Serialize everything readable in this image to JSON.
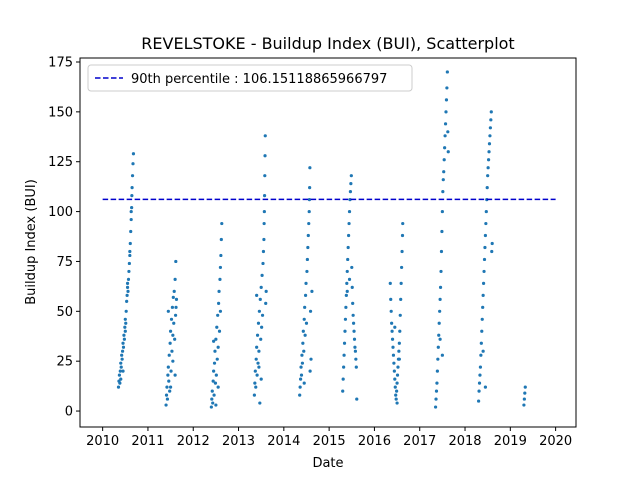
{
  "chart_data": {
    "type": "scatter",
    "title": "REVELSTOKE - Buildup Index (BUI), Scatterplot",
    "xlabel": "Date",
    "ylabel": "Buildup Index (BUI)",
    "x_ticks": [
      "2010",
      "2011",
      "2012",
      "2013",
      "2014",
      "2015",
      "2016",
      "2017",
      "2018",
      "2019",
      "2020"
    ],
    "y_ticks": [
      "0",
      "25",
      "50",
      "75",
      "100",
      "125",
      "150",
      "175"
    ],
    "xlim": [
      2009.5,
      2020.45
    ],
    "ylim": [
      -8,
      177
    ],
    "grid": false,
    "legend_position": "top-left",
    "reference_line": {
      "label": "90th percentile : 106.15118865966797",
      "value": 106.15118865966797,
      "x_range": [
        2010.0,
        2020.0
      ],
      "color": "#0000cc",
      "style": "dashed"
    },
    "point_color": "#1f77b4",
    "series": [
      {
        "points": [
          [
            2010.35,
            12
          ],
          [
            2010.36,
            15
          ],
          [
            2010.37,
            18
          ],
          [
            2010.38,
            14
          ],
          [
            2010.39,
            20
          ],
          [
            2010.4,
            24
          ],
          [
            2010.41,
            22
          ],
          [
            2010.42,
            28
          ],
          [
            2010.43,
            26
          ],
          [
            2010.44,
            30
          ],
          [
            2010.45,
            34
          ],
          [
            2010.46,
            32
          ],
          [
            2010.47,
            38
          ],
          [
            2010.48,
            36
          ],
          [
            2010.49,
            42
          ],
          [
            2010.5,
            46
          ],
          [
            2010.51,
            44
          ],
          [
            2010.52,
            50
          ],
          [
            2010.53,
            55
          ],
          [
            2010.54,
            58
          ],
          [
            2010.55,
            62
          ],
          [
            2010.56,
            60
          ],
          [
            2010.57,
            66
          ],
          [
            2010.58,
            70
          ],
          [
            2010.59,
            74
          ],
          [
            2010.6,
            78
          ],
          [
            2010.61,
            84
          ],
          [
            2010.62,
            90
          ],
          [
            2010.63,
            96
          ],
          [
            2010.64,
            102
          ],
          [
            2010.645,
            108
          ],
          [
            2010.65,
            112
          ],
          [
            2010.66,
            118
          ],
          [
            2010.67,
            124
          ],
          [
            2010.68,
            129
          ],
          [
            2010.4,
            16
          ],
          [
            2010.45,
            20
          ],
          [
            2010.5,
            40
          ],
          [
            2010.55,
            64
          ],
          [
            2010.6,
            80
          ],
          [
            2010.63,
            100
          ]
        ]
      },
      {
        "points": [
          [
            2011.4,
            3
          ],
          [
            2011.41,
            8
          ],
          [
            2011.42,
            12
          ],
          [
            2011.43,
            6
          ],
          [
            2011.44,
            18
          ],
          [
            2011.45,
            22
          ],
          [
            2011.46,
            15
          ],
          [
            2011.47,
            28
          ],
          [
            2011.48,
            10
          ],
          [
            2011.49,
            34
          ],
          [
            2011.5,
            40
          ],
          [
            2011.51,
            20
          ],
          [
            2011.52,
            46
          ],
          [
            2011.53,
            30
          ],
          [
            2011.54,
            52
          ],
          [
            2011.55,
            25
          ],
          [
            2011.56,
            57
          ],
          [
            2011.57,
            44
          ],
          [
            2011.58,
            60
          ],
          [
            2011.59,
            36
          ],
          [
            2011.6,
            66
          ],
          [
            2011.61,
            48
          ],
          [
            2011.615,
            75
          ],
          [
            2011.62,
            52
          ],
          [
            2011.63,
            56
          ],
          [
            2011.45,
            50
          ],
          [
            2011.5,
            12
          ],
          [
            2011.55,
            38
          ],
          [
            2011.6,
            18
          ]
        ]
      },
      {
        "points": [
          [
            2012.4,
            2
          ],
          [
            2012.41,
            6
          ],
          [
            2012.42,
            10
          ],
          [
            2012.43,
            4
          ],
          [
            2012.44,
            15
          ],
          [
            2012.45,
            20
          ],
          [
            2012.46,
            8
          ],
          [
            2012.47,
            24
          ],
          [
            2012.48,
            30
          ],
          [
            2012.49,
            14
          ],
          [
            2012.5,
            36
          ],
          [
            2012.51,
            18
          ],
          [
            2012.52,
            42
          ],
          [
            2012.53,
            26
          ],
          [
            2012.54,
            48
          ],
          [
            2012.55,
            32
          ],
          [
            2012.56,
            54
          ],
          [
            2012.57,
            60
          ],
          [
            2012.58,
            40
          ],
          [
            2012.59,
            66
          ],
          [
            2012.6,
            72
          ],
          [
            2012.61,
            78
          ],
          [
            2012.62,
            86
          ],
          [
            2012.63,
            94
          ],
          [
            2012.45,
            35
          ],
          [
            2012.5,
            3
          ],
          [
            2012.55,
            12
          ],
          [
            2012.6,
            50
          ]
        ]
      },
      {
        "points": [
          [
            2013.35,
            8
          ],
          [
            2013.36,
            14
          ],
          [
            2013.37,
            20
          ],
          [
            2013.38,
            12
          ],
          [
            2013.39,
            26
          ],
          [
            2013.4,
            32
          ],
          [
            2013.41,
            18
          ],
          [
            2013.42,
            38
          ],
          [
            2013.43,
            24
          ],
          [
            2013.44,
            44
          ],
          [
            2013.45,
            30
          ],
          [
            2013.46,
            50
          ],
          [
            2013.47,
            4
          ],
          [
            2013.48,
            56
          ],
          [
            2013.49,
            36
          ],
          [
            2013.5,
            62
          ],
          [
            2013.51,
            42
          ],
          [
            2013.52,
            68
          ],
          [
            2013.53,
            48
          ],
          [
            2013.54,
            74
          ],
          [
            2013.55,
            80
          ],
          [
            2013.56,
            86
          ],
          [
            2013.565,
            94
          ],
          [
            2013.57,
            100
          ],
          [
            2013.575,
            108
          ],
          [
            2013.58,
            118
          ],
          [
            2013.585,
            128
          ],
          [
            2013.59,
            138
          ],
          [
            2013.6,
            54
          ],
          [
            2013.61,
            60
          ],
          [
            2013.4,
            58
          ],
          [
            2013.45,
            22
          ],
          [
            2013.5,
            16
          ]
        ]
      },
      {
        "points": [
          [
            2014.35,
            8
          ],
          [
            2014.36,
            12
          ],
          [
            2014.37,
            16
          ],
          [
            2014.38,
            22
          ],
          [
            2014.39,
            18
          ],
          [
            2014.4,
            28
          ],
          [
            2014.41,
            24
          ],
          [
            2014.42,
            34
          ],
          [
            2014.43,
            40
          ],
          [
            2014.44,
            30
          ],
          [
            2014.45,
            46
          ],
          [
            2014.46,
            52
          ],
          [
            2014.47,
            38
          ],
          [
            2014.48,
            58
          ],
          [
            2014.49,
            64
          ],
          [
            2014.5,
            44
          ],
          [
            2014.51,
            70
          ],
          [
            2014.52,
            76
          ],
          [
            2014.53,
            82
          ],
          [
            2014.54,
            88
          ],
          [
            2014.55,
            94
          ],
          [
            2014.56,
            100
          ],
          [
            2014.565,
            106
          ],
          [
            2014.57,
            112
          ],
          [
            2014.575,
            122
          ],
          [
            2014.58,
            20
          ],
          [
            2014.59,
            50
          ],
          [
            2014.6,
            26
          ],
          [
            2014.62,
            60
          ],
          [
            2014.45,
            14
          ]
        ]
      },
      {
        "points": [
          [
            2015.3,
            10
          ],
          [
            2015.31,
            16
          ],
          [
            2015.32,
            22
          ],
          [
            2015.33,
            28
          ],
          [
            2015.34,
            34
          ],
          [
            2015.35,
            40
          ],
          [
            2015.36,
            46
          ],
          [
            2015.37,
            52
          ],
          [
            2015.38,
            58
          ],
          [
            2015.39,
            64
          ],
          [
            2015.4,
            70
          ],
          [
            2015.41,
            76
          ],
          [
            2015.42,
            82
          ],
          [
            2015.43,
            88
          ],
          [
            2015.44,
            94
          ],
          [
            2015.45,
            100
          ],
          [
            2015.46,
            106
          ],
          [
            2015.47,
            110
          ],
          [
            2015.48,
            114
          ],
          [
            2015.49,
            118
          ],
          [
            2015.5,
            72
          ],
          [
            2015.51,
            62
          ],
          [
            2015.52,
            54
          ],
          [
            2015.53,
            48
          ],
          [
            2015.54,
            44
          ],
          [
            2015.55,
            40
          ],
          [
            2015.56,
            36
          ],
          [
            2015.57,
            32
          ],
          [
            2015.58,
            30
          ],
          [
            2015.59,
            26
          ],
          [
            2015.6,
            22
          ],
          [
            2015.61,
            6
          ],
          [
            2015.4,
            60
          ],
          [
            2015.45,
            66
          ]
        ]
      },
      {
        "points": [
          [
            2016.35,
            64
          ],
          [
            2016.36,
            56
          ],
          [
            2016.37,
            50
          ],
          [
            2016.38,
            44
          ],
          [
            2016.39,
            40
          ],
          [
            2016.4,
            36
          ],
          [
            2016.41,
            32
          ],
          [
            2016.42,
            28
          ],
          [
            2016.43,
            24
          ],
          [
            2016.44,
            20
          ],
          [
            2016.45,
            16
          ],
          [
            2016.46,
            12
          ],
          [
            2016.47,
            8
          ],
          [
            2016.48,
            6
          ],
          [
            2016.49,
            10
          ],
          [
            2016.5,
            14
          ],
          [
            2016.51,
            18
          ],
          [
            2016.52,
            22
          ],
          [
            2016.53,
            26
          ],
          [
            2016.54,
            30
          ],
          [
            2016.55,
            34
          ],
          [
            2016.56,
            40
          ],
          [
            2016.57,
            48
          ],
          [
            2016.58,
            56
          ],
          [
            2016.59,
            64
          ],
          [
            2016.6,
            72
          ],
          [
            2016.61,
            80
          ],
          [
            2016.62,
            88
          ],
          [
            2016.625,
            94
          ],
          [
            2016.45,
            42
          ],
          [
            2016.5,
            4
          ],
          [
            2016.55,
            26
          ]
        ]
      },
      {
        "points": [
          [
            2017.35,
            2
          ],
          [
            2017.36,
            6
          ],
          [
            2017.37,
            10
          ],
          [
            2017.38,
            14
          ],
          [
            2017.39,
            20
          ],
          [
            2017.4,
            26
          ],
          [
            2017.41,
            32
          ],
          [
            2017.42,
            38
          ],
          [
            2017.43,
            44
          ],
          [
            2017.44,
            50
          ],
          [
            2017.45,
            56
          ],
          [
            2017.46,
            62
          ],
          [
            2017.47,
            70
          ],
          [
            2017.48,
            80
          ],
          [
            2017.49,
            90
          ],
          [
            2017.5,
            100
          ],
          [
            2017.51,
            110
          ],
          [
            2017.52,
            116
          ],
          [
            2017.53,
            120
          ],
          [
            2017.54,
            126
          ],
          [
            2017.55,
            132
          ],
          [
            2017.56,
            138
          ],
          [
            2017.57,
            144
          ],
          [
            2017.58,
            150
          ],
          [
            2017.59,
            156
          ],
          [
            2017.6,
            162
          ],
          [
            2017.61,
            170
          ],
          [
            2017.62,
            140
          ],
          [
            2017.63,
            130
          ],
          [
            2017.45,
            36
          ],
          [
            2017.5,
            28
          ]
        ]
      },
      {
        "points": [
          [
            2018.3,
            5
          ],
          [
            2018.31,
            10
          ],
          [
            2018.32,
            14
          ],
          [
            2018.33,
            18
          ],
          [
            2018.34,
            22
          ],
          [
            2018.35,
            28
          ],
          [
            2018.36,
            34
          ],
          [
            2018.37,
            40
          ],
          [
            2018.38,
            46
          ],
          [
            2018.39,
            52
          ],
          [
            2018.4,
            58
          ],
          [
            2018.41,
            64
          ],
          [
            2018.42,
            70
          ],
          [
            2018.43,
            76
          ],
          [
            2018.44,
            82
          ],
          [
            2018.45,
            88
          ],
          [
            2018.46,
            94
          ],
          [
            2018.47,
            100
          ],
          [
            2018.48,
            106
          ],
          [
            2018.49,
            112
          ],
          [
            2018.5,
            118
          ],
          [
            2018.51,
            122
          ],
          [
            2018.52,
            126
          ],
          [
            2018.53,
            130
          ],
          [
            2018.54,
            134
          ],
          [
            2018.55,
            138
          ],
          [
            2018.56,
            142
          ],
          [
            2018.57,
            146
          ],
          [
            2018.58,
            150
          ],
          [
            2018.59,
            80
          ],
          [
            2018.6,
            84
          ],
          [
            2018.4,
            30
          ],
          [
            2018.45,
            12
          ]
        ]
      },
      {
        "points": [
          [
            2019.3,
            3
          ],
          [
            2019.31,
            6
          ],
          [
            2019.32,
            9
          ],
          [
            2019.33,
            12
          ]
        ]
      }
    ]
  }
}
